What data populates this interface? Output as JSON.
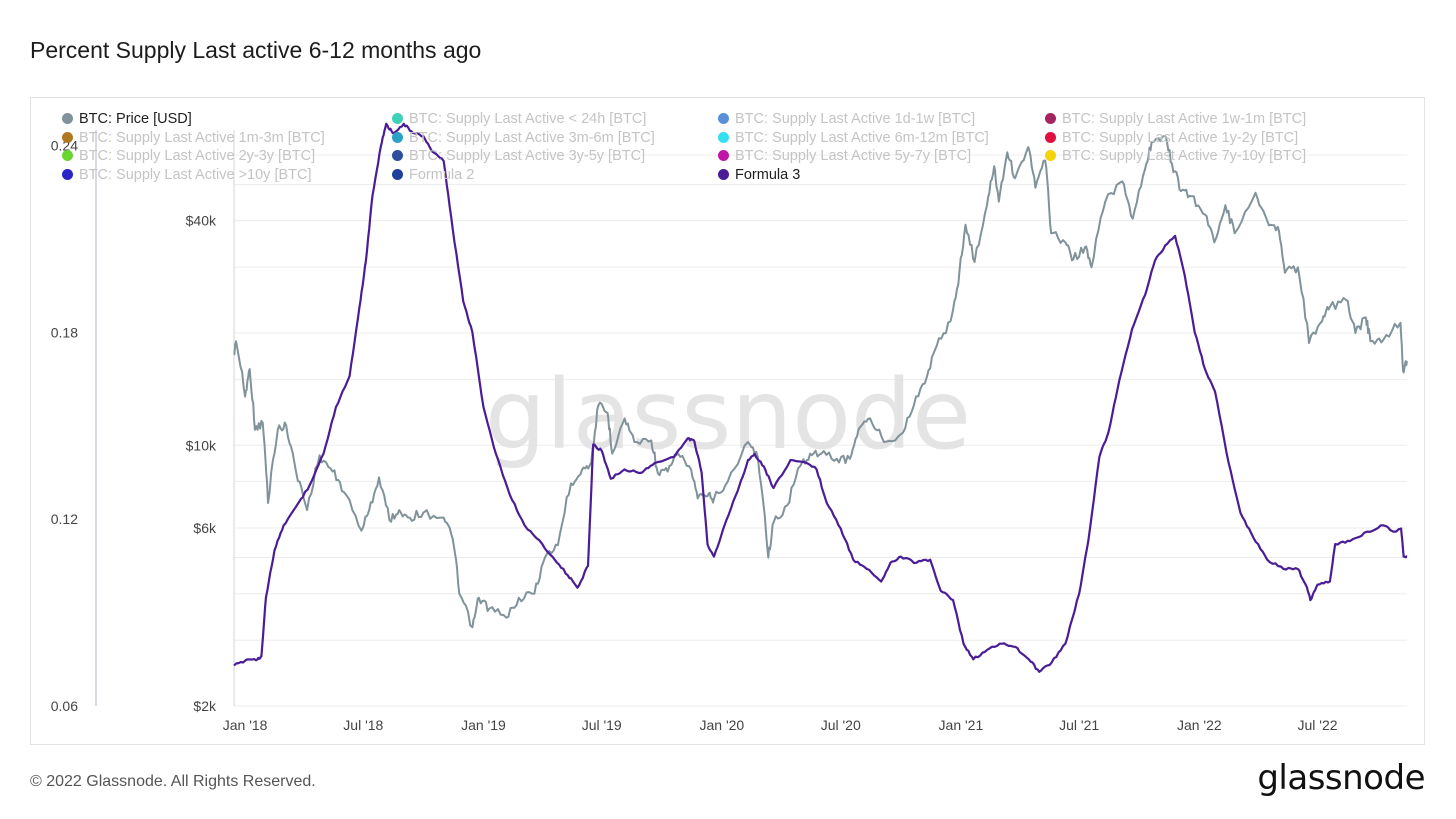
{
  "title": "Percent Supply Last active 6-12 months ago",
  "footer": "© 2022 Glassnode. All Rights Reserved.",
  "logo": "glassnode",
  "watermark": "glassnode",
  "colors": {
    "price": "#80929a",
    "formula3": "#4a1d96",
    "grid": "#ededed",
    "axis_line": "#b7aed6"
  },
  "legend": [
    {
      "label": "BTC: Price [USD]",
      "color": "#80929a",
      "active": true
    },
    {
      "label": "BTC: Supply Last Active < 24h [BTC]",
      "color": "#3ed1b7",
      "active": false
    },
    {
      "label": "BTC: Supply Last Active 1d-1w [BTC]",
      "color": "#5b8fd9",
      "active": false
    },
    {
      "label": "BTC: Supply Last Active 1w-1m [BTC]",
      "color": "#a3245e",
      "active": false
    },
    {
      "label": "BTC: Supply Last Active 1m-3m [BTC]",
      "color": "#b0781f",
      "active": false
    },
    {
      "label": "BTC: Supply Last Active 3m-6m [BTC]",
      "color": "#2ca1c3",
      "active": false
    },
    {
      "label": "BTC: Supply Last Active 6m-12m [BTC]",
      "color": "#34e0f0",
      "active": false
    },
    {
      "label": "BTC: Supply Last Active 1y-2y [BTC]",
      "color": "#e0103f",
      "active": false
    },
    {
      "label": "BTC: Supply Last Active 2y-3y [BTC]",
      "color": "#6ad631",
      "active": false
    },
    {
      "label": "BTC: Supply Last Active 3y-5y [BTC]",
      "color": "#2e4f9c",
      "active": false
    },
    {
      "label": "BTC: Supply Last Active 5y-7y [BTC]",
      "color": "#c016a8",
      "active": false
    },
    {
      "label": "BTC: Supply Last Active 7y-10y [BTC]",
      "color": "#f5d20a",
      "active": false
    },
    {
      "label": "BTC: Supply Last Active >10y [BTC]",
      "color": "#2a25c9",
      "active": false
    },
    {
      "label": "Formula 2",
      "color": "#1e3f9e",
      "active": false
    },
    {
      "label": "Formula 3",
      "color": "#4a1d96",
      "active": true
    }
  ],
  "chart_data": {
    "type": "line",
    "title": "Percent Supply Last active 6-12 months ago",
    "x_ticks": [
      "Jan '18",
      "Jul '18",
      "Jan '19",
      "Jul '19",
      "Jan '20",
      "Jul '20",
      "Jan '21",
      "Jul '21",
      "Jan '22",
      "Jul '22"
    ],
    "x_range": [
      "2017-12-15",
      "2022-11-15"
    ],
    "y_left": {
      "ticks": [
        "0.06",
        "0.12",
        "0.18",
        "0.24"
      ],
      "range": [
        0.06,
        0.245
      ],
      "scale": "linear"
    },
    "y_right_price": {
      "ticks": [
        "$2k",
        "$6k",
        "$10k",
        "$40k"
      ],
      "range": [
        2000,
        70000
      ],
      "scale": "log"
    },
    "grid": true,
    "series": [
      {
        "name": "BTC: Price [USD]",
        "axis": "price",
        "points": [
          [
            "2017-12-15",
            17500
          ],
          [
            "2017-12-18",
            19000
          ],
          [
            "2018-01-01",
            13500
          ],
          [
            "2018-01-08",
            16000
          ],
          [
            "2018-01-16",
            11000
          ],
          [
            "2018-01-28",
            11500
          ],
          [
            "2018-02-05",
            7000
          ],
          [
            "2018-02-20",
            11000
          ],
          [
            "2018-03-05",
            11300
          ],
          [
            "2018-03-20",
            8500
          ],
          [
            "2018-04-06",
            6700
          ],
          [
            "2018-04-25",
            9400
          ],
          [
            "2018-05-15",
            8500
          ],
          [
            "2018-06-01",
            7500
          ],
          [
            "2018-06-28",
            5900
          ],
          [
            "2018-07-10",
            6700
          ],
          [
            "2018-07-25",
            8200
          ],
          [
            "2018-08-10",
            6300
          ],
          [
            "2018-08-25",
            6700
          ],
          [
            "2018-09-10",
            6400
          ],
          [
            "2018-10-01",
            6600
          ],
          [
            "2018-11-01",
            6400
          ],
          [
            "2018-11-15",
            5600
          ],
          [
            "2018-11-25",
            4000
          ],
          [
            "2018-12-15",
            3250
          ],
          [
            "2018-12-25",
            3900
          ],
          [
            "2019-01-10",
            3650
          ],
          [
            "2019-02-05",
            3450
          ],
          [
            "2019-02-24",
            3900
          ],
          [
            "2019-03-20",
            4000
          ],
          [
            "2019-04-05",
            5000
          ],
          [
            "2019-04-25",
            5400
          ],
          [
            "2019-05-15",
            7900
          ],
          [
            "2019-06-01",
            8600
          ],
          [
            "2019-06-15",
            9000
          ],
          [
            "2019-06-26",
            12800
          ],
          [
            "2019-07-10",
            12200
          ],
          [
            "2019-07-17",
            9500
          ],
          [
            "2019-08-05",
            11800
          ],
          [
            "2019-08-20",
            10200
          ],
          [
            "2019-09-15",
            10300
          ],
          [
            "2019-09-25",
            8400
          ],
          [
            "2019-10-10",
            8500
          ],
          [
            "2019-10-26",
            9500
          ],
          [
            "2019-11-15",
            8600
          ],
          [
            "2019-11-25",
            7200
          ],
          [
            "2019-12-10",
            7300
          ],
          [
            "2019-12-20",
            7200
          ],
          [
            "2020-01-10",
            8000
          ],
          [
            "2020-02-10",
            10200
          ],
          [
            "2020-02-25",
            9300
          ],
          [
            "2020-03-12",
            5000
          ],
          [
            "2020-03-20",
            6200
          ],
          [
            "2020-04-10",
            6900
          ],
          [
            "2020-04-30",
            8800
          ],
          [
            "2020-05-15",
            9500
          ],
          [
            "2020-06-01",
            9500
          ],
          [
            "2020-06-25",
            9200
          ],
          [
            "2020-07-15",
            9200
          ],
          [
            "2020-07-28",
            11000
          ],
          [
            "2020-08-15",
            11800
          ],
          [
            "2020-09-05",
            10200
          ],
          [
            "2020-10-01",
            10700
          ],
          [
            "2020-10-21",
            12800
          ],
          [
            "2020-11-10",
            15300
          ],
          [
            "2020-11-25",
            18500
          ],
          [
            "2020-12-16",
            21500
          ],
          [
            "2020-12-28",
            27000
          ],
          [
            "2021-01-08",
            39000
          ],
          [
            "2021-01-22",
            31000
          ],
          [
            "2021-02-10",
            44000
          ],
          [
            "2021-02-21",
            56000
          ],
          [
            "2021-02-28",
            45000
          ],
          [
            "2021-03-13",
            61000
          ],
          [
            "2021-03-25",
            52000
          ],
          [
            "2021-04-14",
            63000
          ],
          [
            "2021-04-25",
            49000
          ],
          [
            "2021-05-10",
            58000
          ],
          [
            "2021-05-19",
            37000
          ],
          [
            "2021-06-10",
            35000
          ],
          [
            "2021-06-22",
            31500
          ],
          [
            "2021-07-10",
            34000
          ],
          [
            "2021-07-20",
            30000
          ],
          [
            "2021-08-10",
            45000
          ],
          [
            "2021-09-05",
            51000
          ],
          [
            "2021-09-21",
            40500
          ],
          [
            "2021-10-10",
            55000
          ],
          [
            "2021-10-20",
            65000
          ],
          [
            "2021-11-09",
            67500
          ],
          [
            "2021-11-20",
            57000
          ],
          [
            "2021-12-04",
            48000
          ],
          [
            "2021-12-20",
            46500
          ],
          [
            "2022-01-10",
            41500
          ],
          [
            "2022-01-24",
            35000
          ],
          [
            "2022-02-10",
            44000
          ],
          [
            "2022-02-24",
            37000
          ],
          [
            "2022-03-28",
            47500
          ],
          [
            "2022-04-15",
            40000
          ],
          [
            "2022-05-01",
            38500
          ],
          [
            "2022-05-12",
            29000
          ],
          [
            "2022-06-01",
            30000
          ],
          [
            "2022-06-18",
            18800
          ],
          [
            "2022-07-08",
            21500
          ],
          [
            "2022-07-20",
            23500
          ],
          [
            "2022-08-14",
            24500
          ],
          [
            "2022-08-28",
            20000
          ],
          [
            "2022-09-13",
            22000
          ],
          [
            "2022-09-20",
            19000
          ],
          [
            "2022-10-10",
            19200
          ],
          [
            "2022-11-05",
            21300
          ],
          [
            "2022-11-09",
            15800
          ],
          [
            "2022-11-15",
            16800
          ]
        ]
      },
      {
        "name": "Formula 3",
        "axis": "left",
        "points": [
          [
            "2017-12-15",
            0.073
          ],
          [
            "2018-01-05",
            0.075
          ],
          [
            "2018-01-20",
            0.075
          ],
          [
            "2018-01-26",
            0.076
          ],
          [
            "2018-02-02",
            0.095
          ],
          [
            "2018-02-15",
            0.11
          ],
          [
            "2018-03-01",
            0.118
          ],
          [
            "2018-03-20",
            0.124
          ],
          [
            "2018-04-10",
            0.131
          ],
          [
            "2018-05-01",
            0.141
          ],
          [
            "2018-05-20",
            0.156
          ],
          [
            "2018-06-10",
            0.166
          ],
          [
            "2018-06-25",
            0.188
          ],
          [
            "2018-07-05",
            0.203
          ],
          [
            "2018-07-15",
            0.224
          ],
          [
            "2018-07-28",
            0.24
          ],
          [
            "2018-08-05",
            0.247
          ],
          [
            "2018-08-15",
            0.244
          ],
          [
            "2018-09-01",
            0.247
          ],
          [
            "2018-09-15",
            0.244
          ],
          [
            "2018-10-01",
            0.243
          ],
          [
            "2018-10-15",
            0.238
          ],
          [
            "2018-11-01",
            0.235
          ],
          [
            "2018-11-15",
            0.213
          ],
          [
            "2018-12-01",
            0.19
          ],
          [
            "2018-12-15",
            0.18
          ],
          [
            "2019-01-01",
            0.156
          ],
          [
            "2019-01-20",
            0.141
          ],
          [
            "2019-02-10",
            0.128
          ],
          [
            "2019-03-05",
            0.118
          ],
          [
            "2019-04-01",
            0.112
          ],
          [
            "2019-04-20",
            0.107
          ],
          [
            "2019-05-10",
            0.102
          ],
          [
            "2019-05-25",
            0.098
          ],
          [
            "2019-06-10",
            0.105
          ],
          [
            "2019-06-18",
            0.144
          ],
          [
            "2019-07-01",
            0.142
          ],
          [
            "2019-07-15",
            0.133
          ],
          [
            "2019-08-05",
            0.136
          ],
          [
            "2019-09-01",
            0.135
          ],
          [
            "2019-09-20",
            0.138
          ],
          [
            "2019-10-20",
            0.14
          ],
          [
            "2019-11-10",
            0.146
          ],
          [
            "2019-11-20",
            0.145
          ],
          [
            "2019-12-01",
            0.135
          ],
          [
            "2019-12-10",
            0.112
          ],
          [
            "2019-12-20",
            0.108
          ],
          [
            "2020-01-05",
            0.118
          ],
          [
            "2020-01-25",
            0.129
          ],
          [
            "2020-02-10",
            0.139
          ],
          [
            "2020-02-20",
            0.141
          ],
          [
            "2020-03-05",
            0.137
          ],
          [
            "2020-03-20",
            0.13
          ],
          [
            "2020-04-15",
            0.139
          ],
          [
            "2020-05-10",
            0.138
          ],
          [
            "2020-05-25",
            0.136
          ],
          [
            "2020-06-10",
            0.125
          ],
          [
            "2020-07-01",
            0.117
          ],
          [
            "2020-07-20",
            0.107
          ],
          [
            "2020-08-10",
            0.104
          ],
          [
            "2020-09-01",
            0.1
          ],
          [
            "2020-09-15",
            0.106
          ],
          [
            "2020-10-01",
            0.108
          ],
          [
            "2020-10-25",
            0.106
          ],
          [
            "2020-11-15",
            0.107
          ],
          [
            "2020-12-01",
            0.097
          ],
          [
            "2020-12-20",
            0.094
          ],
          [
            "2021-01-05",
            0.08
          ],
          [
            "2021-01-20",
            0.075
          ],
          [
            "2021-02-10",
            0.078
          ],
          [
            "2021-03-05",
            0.08
          ],
          [
            "2021-03-25",
            0.079
          ],
          [
            "2021-04-15",
            0.075
          ],
          [
            "2021-05-01",
            0.071
          ],
          [
            "2021-05-20",
            0.074
          ],
          [
            "2021-06-10",
            0.08
          ],
          [
            "2021-07-01",
            0.096
          ],
          [
            "2021-07-15",
            0.113
          ],
          [
            "2021-08-01",
            0.14
          ],
          [
            "2021-08-15",
            0.148
          ],
          [
            "2021-09-01",
            0.165
          ],
          [
            "2021-09-20",
            0.181
          ],
          [
            "2021-10-10",
            0.192
          ],
          [
            "2021-10-25",
            0.203
          ],
          [
            "2021-11-10",
            0.208
          ],
          [
            "2021-11-25",
            0.211
          ],
          [
            "2021-12-10",
            0.198
          ],
          [
            "2021-12-25",
            0.18
          ],
          [
            "2022-01-10",
            0.168
          ],
          [
            "2022-01-25",
            0.161
          ],
          [
            "2022-02-15",
            0.138
          ],
          [
            "2022-03-05",
            0.122
          ],
          [
            "2022-03-25",
            0.114
          ],
          [
            "2022-04-15",
            0.107
          ],
          [
            "2022-05-10",
            0.104
          ],
          [
            "2022-06-01",
            0.104
          ],
          [
            "2022-06-15",
            0.098
          ],
          [
            "2022-06-20",
            0.094
          ],
          [
            "2022-07-01",
            0.099
          ],
          [
            "2022-07-20",
            0.1
          ],
          [
            "2022-07-28",
            0.112
          ],
          [
            "2022-08-20",
            0.113
          ],
          [
            "2022-09-15",
            0.116
          ],
          [
            "2022-10-10",
            0.118
          ],
          [
            "2022-10-25",
            0.116
          ],
          [
            "2022-11-06",
            0.117
          ],
          [
            "2022-11-10",
            0.108
          ],
          [
            "2022-11-15",
            0.108
          ]
        ]
      }
    ]
  }
}
